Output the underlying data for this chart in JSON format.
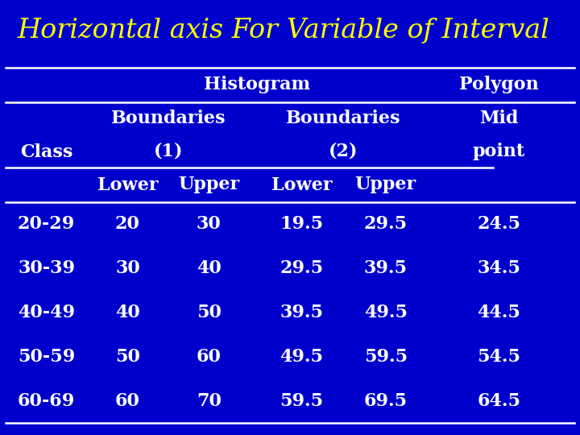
{
  "title": "Horizontal axis For Variable of Interval",
  "title_color": "#FFFF00",
  "title_fontsize": 24,
  "background_color": "#0000CC",
  "text_color": "#FFFFFF",
  "line_color": "#FFFFFF",
  "data_fontsize": 16,
  "header_fontsize": 16,
  "rows": [
    [
      "20-29",
      "20",
      "30",
      "19.5",
      "29.5",
      "24.5"
    ],
    [
      "30-39",
      "30",
      "40",
      "29.5",
      "39.5",
      "34.5"
    ],
    [
      "40-49",
      "40",
      "50",
      "39.5",
      "49.5",
      "44.5"
    ],
    [
      "50-59",
      "50",
      "60",
      "49.5",
      "59.5",
      "54.5"
    ],
    [
      "60-69",
      "60",
      "70",
      "59.5",
      "69.5",
      "64.5"
    ]
  ]
}
